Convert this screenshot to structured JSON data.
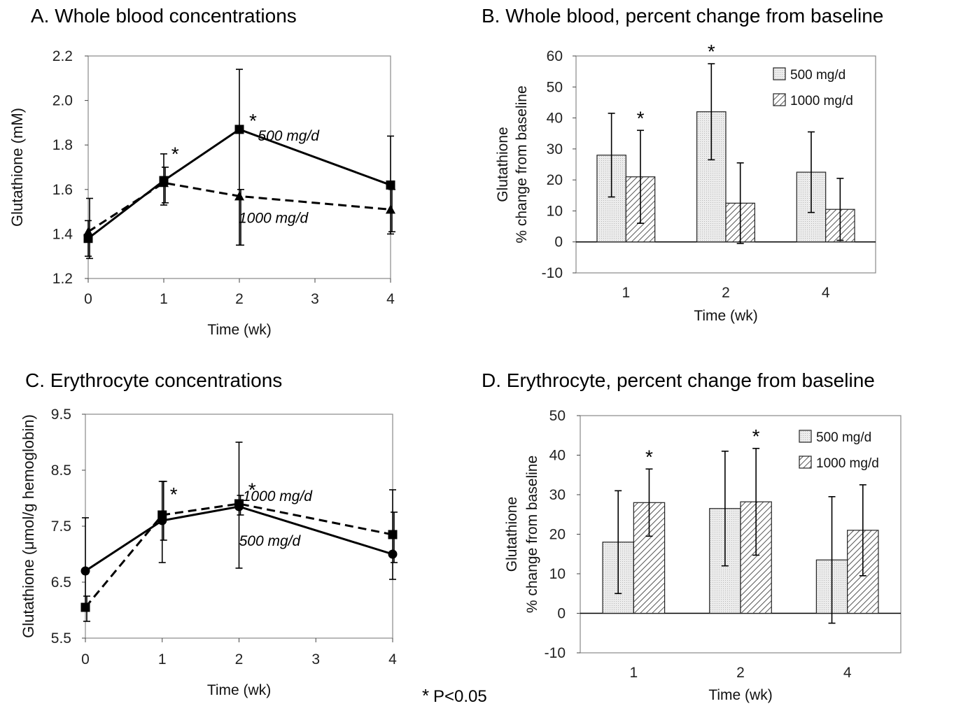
{
  "footnote": {
    "star": "*",
    "text": "P<0.05"
  },
  "chart_data": [
    {
      "panel": "A",
      "type": "line",
      "title": "A.  Whole blood concentrations",
      "xlabel": "Time (wk)",
      "ylabel": "Glutathione (mM)",
      "xlim": [
        0,
        4
      ],
      "ylim": [
        1.2,
        2.2
      ],
      "xticks": [
        "0",
        "1",
        "2",
        "3",
        "4"
      ],
      "yticks": [
        "1.2",
        "1.4",
        "1.6",
        "1.8",
        "2.0",
        "2.2"
      ],
      "series": [
        {
          "name": "500 mg/d",
          "x": [
            0,
            1,
            2,
            4
          ],
          "y": [
            1.38,
            1.64,
            1.87,
            1.62
          ],
          "err_low": [
            0.08,
            0.11,
            0.52,
            0.22
          ],
          "err_high": [
            0.08,
            0.12,
            0.27,
            0.22
          ],
          "marker": "square",
          "dash": "solid",
          "star": [
            false,
            true,
            true,
            false
          ]
        },
        {
          "name": "1000 mg/d",
          "x": [
            0,
            1,
            2,
            4
          ],
          "y": [
            1.41,
            1.63,
            1.57,
            1.51
          ],
          "err_low": [
            0.12,
            0.09,
            0.22,
            0.1
          ],
          "err_high": [
            0.15,
            0.07,
            0.03,
            0.09
          ],
          "marker": "triangle",
          "dash": "dashed",
          "star": [
            false,
            false,
            false,
            false
          ]
        }
      ],
      "annotations": [
        {
          "text": "500 mg/d",
          "at": [
            2.65,
            1.82
          ]
        },
        {
          "text": "1000 mg/d",
          "at": [
            2.45,
            1.45
          ]
        },
        {
          "text": "*",
          "at": [
            1.15,
            1.73
          ]
        },
        {
          "text": "*",
          "at": [
            2.18,
            1.88
          ]
        }
      ]
    },
    {
      "panel": "B",
      "type": "bar",
      "title": "B.  Whole blood, percent change from baseline",
      "xlabel": "Time (wk)",
      "ylabel": [
        "Glutathione",
        "% change from baseline"
      ],
      "categories": [
        "1",
        "2",
        "4"
      ],
      "ylim": [
        -10,
        60
      ],
      "yticks": [
        "-10",
        "0",
        "10",
        "20",
        "30",
        "40",
        "50",
        "60"
      ],
      "legend": "top-right",
      "series": [
        {
          "name": "500 mg/d",
          "pattern": "dotted",
          "values": [
            28,
            42,
            22.5
          ],
          "err": [
            13.5,
            15.5,
            13
          ],
          "star": [
            false,
            true,
            false
          ]
        },
        {
          "name": "1000 mg/d",
          "pattern": "hatched",
          "values": [
            21,
            12.5,
            10.5
          ],
          "err": [
            15,
            13,
            10
          ],
          "star": [
            true,
            false,
            false
          ]
        }
      ]
    },
    {
      "panel": "C",
      "type": "line",
      "title": "C.  Erythrocyte concentrations",
      "xlabel": "Time (wk)",
      "ylabel": "Glutathione (μmol/g hemoglobin)",
      "xlim": [
        0,
        4
      ],
      "ylim": [
        5.5,
        9.5
      ],
      "xticks": [
        "0",
        "1",
        "2",
        "3",
        "4"
      ],
      "yticks": [
        "5.5",
        "6.5",
        "7.5",
        "8.5",
        "9.5"
      ],
      "series": [
        {
          "name": "500 mg/d",
          "x": [
            0,
            1,
            2,
            4
          ],
          "y": [
            6.7,
            7.6,
            7.85,
            7.0
          ],
          "err_low": [
            0.65,
            0.75,
            1.1,
            0.45
          ],
          "err_high": [
            0.95,
            0.7,
            1.15,
            1.15
          ],
          "marker": "circle",
          "dash": "solid",
          "star": [
            false,
            false,
            false,
            false
          ]
        },
        {
          "name": "1000 mg/d",
          "x": [
            0,
            1,
            2,
            4
          ],
          "y": [
            6.05,
            7.7,
            7.9,
            7.35
          ],
          "err_low": [
            0.25,
            0.45,
            0.2,
            0.5
          ],
          "err_high": [
            0.2,
            0.6,
            0.15,
            0.4
          ],
          "marker": "square",
          "dash": "dashed",
          "star": [
            false,
            true,
            true,
            false
          ]
        }
      ],
      "annotations": [
        {
          "text": "1000 mg/d",
          "at": [
            2.5,
            7.95
          ]
        },
        {
          "text": "500 mg/d",
          "at": [
            2.4,
            7.15
          ]
        },
        {
          "text": "*",
          "at": [
            1.15,
            7.95
          ]
        },
        {
          "text": "*",
          "at": [
            2.17,
            8.03
          ]
        }
      ]
    },
    {
      "panel": "D",
      "type": "bar",
      "title": "D.  Erythrocyte, percent change from baseline",
      "xlabel": "Time (wk)",
      "ylabel": [
        "Glutathione",
        "% change from baseline"
      ],
      "categories": [
        "1",
        "2",
        "4"
      ],
      "ylim": [
        -10,
        50
      ],
      "yticks": [
        "-10",
        "0",
        "10",
        "20",
        "30",
        "40",
        "50"
      ],
      "legend": "top-right",
      "series": [
        {
          "name": "500 mg/d",
          "pattern": "dotted",
          "values": [
            18,
            26.5,
            13.5
          ],
          "err": [
            13,
            14.5,
            16
          ],
          "star": [
            false,
            false,
            false
          ]
        },
        {
          "name": "1000 mg/d",
          "pattern": "hatched",
          "values": [
            28,
            28.2,
            21
          ],
          "err": [
            8.5,
            13.5,
            11.5
          ],
          "star": [
            true,
            true,
            false
          ]
        }
      ]
    }
  ]
}
